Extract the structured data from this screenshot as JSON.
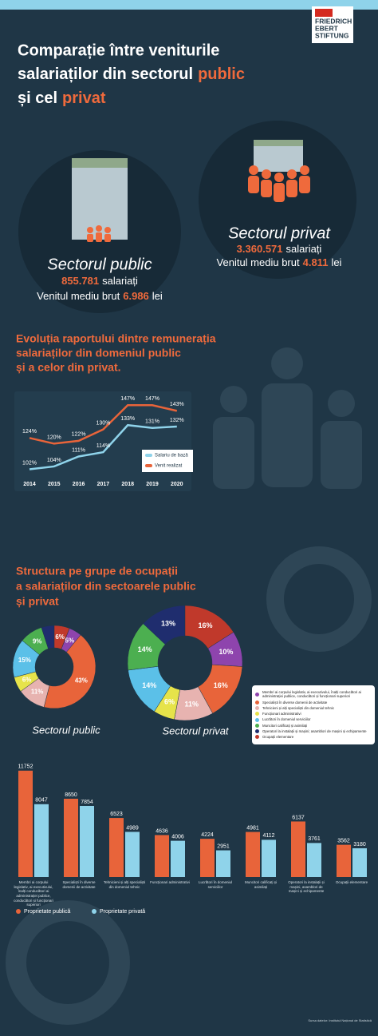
{
  "logo": [
    "FRIEDRICH",
    "EBERT",
    "STIFTUNG"
  ],
  "title": {
    "line1": "Comparație între veniturile",
    "line2": "salariaților din sectorul",
    "line2_highlight": "public",
    "line3": "și cel",
    "line3_highlight": "privat"
  },
  "public": {
    "name": "Sectorul public",
    "employees": "855.781",
    "employees_label": "salariați",
    "income_label": "Venitul mediu brut",
    "income": "6.986",
    "currency": "lei"
  },
  "private": {
    "name": "Sectorul privat",
    "employees": "3.360.571",
    "employees_label": "salariați",
    "income_label": "Venitul mediu brut",
    "income": "4.811",
    "currency": "lei"
  },
  "source": "Sursa datelor: Institutul Național de Statistică",
  "chart_data": [
    {
      "type": "line",
      "title_lines": [
        "Evoluția raportului dintre remunerația",
        "salariaților din domeniul public",
        "și a celor din privat."
      ],
      "categories": [
        "2014",
        "2015",
        "2016",
        "2017",
        "2018",
        "2019",
        "2020"
      ],
      "ylim": [
        95,
        155
      ],
      "series": [
        {
          "name": "Salariu de bază",
          "color": "#8fd3ea",
          "values": [
            102,
            104,
            111,
            114,
            133,
            131,
            132
          ],
          "value_labels": [
            "102%",
            "104%",
            "111%",
            "114%",
            "133%",
            "131%",
            "132%"
          ]
        },
        {
          "name": "Venit realizat",
          "color": "#e8643a",
          "values": [
            124,
            120,
            122,
            130,
            147,
            147,
            143
          ],
          "value_labels": [
            "124%",
            "120%",
            "122%",
            "130%",
            "147%",
            "147%",
            "143%"
          ]
        }
      ]
    },
    {
      "type": "donut",
      "title_lines": [
        "Structura pe grupe de ocupații",
        "a salariaților din sectoarele public",
        "și privat"
      ],
      "categories": [
        "Membri ai corpului legislativ, ai executivului, înalți conducători ai administrației publice, conducători și funcționari superiori",
        "Specialiști în diverse domenii de activitate",
        "Tehnicieni și alți specialiști din domeniul tehnic",
        "Funcționari administrativi",
        "Lucrători în domeniul serviciilor",
        "Muncitori calificați și asimilați",
        "Operatori la instalații și mașini; asamblori de mașini și echipamente",
        "Ocupații elementare"
      ],
      "colors": [
        "#8e44ad",
        "#e8643a",
        "#e7b3b0",
        "#e6e34a",
        "#5bc0e8",
        "#4caf50",
        "#1f2d6e",
        "#c0392b"
      ],
      "series": [
        {
          "name": "Sectorul public",
          "values": [
            5,
            43,
            11,
            6,
            15,
            9,
            5,
            6
          ],
          "value_labels": [
            "5%",
            "43%",
            "11%",
            "6%",
            "15%",
            "9%",
            null,
            "6%"
          ]
        },
        {
          "name": "Sectorul privat",
          "values": [
            10,
            16,
            11,
            6,
            14,
            14,
            13,
            16
          ],
          "value_labels": [
            "10%",
            "16%",
            "11%",
            "6%",
            "14%",
            "14%",
            "13%",
            "16%"
          ]
        }
      ]
    },
    {
      "type": "bar",
      "categories": [
        "Membri ai corpului legislativ, ai executivului, înalți conducători ai administrației publice, conducători și funcționari superiori",
        "Specialiști în diverse domenii de activitate",
        "Tehnicieni și alți specialiști din domeniul tehnic",
        "Funcționari administrativi",
        "Lucrători în domeniul serviciilor",
        "Muncitori calificați și asimilați",
        "Operatori la instalații și mașini, asamblori de mașini și echipamente",
        "Ocupații elementare"
      ],
      "ylim": [
        0,
        12000
      ],
      "series": [
        {
          "name": "Proprietate publică",
          "color": "#e8643a",
          "values": [
            11752,
            8650,
            6523,
            4636,
            4224,
            4981,
            6137,
            3562
          ]
        },
        {
          "name": "Proprietate privată",
          "color": "#8fd3ea",
          "values": [
            8047,
            7854,
            4989,
            4006,
            2951,
            4112,
            3761,
            3180
          ]
        }
      ]
    }
  ]
}
